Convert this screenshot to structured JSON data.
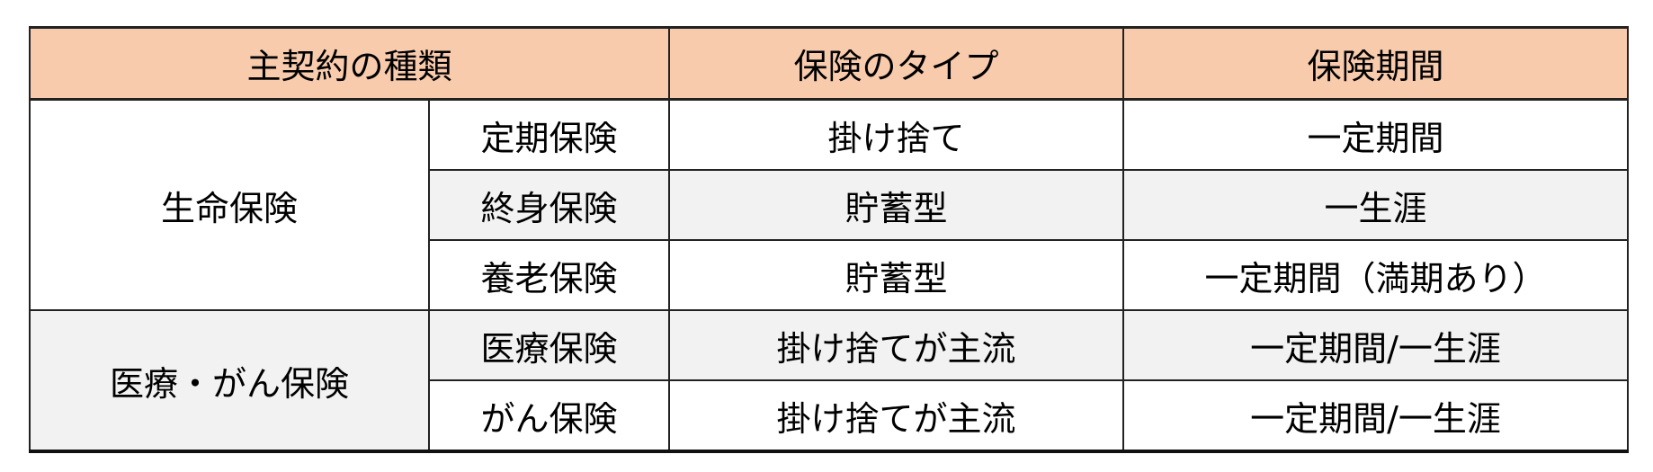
{
  "header": {
    "kind": "主契約の種類",
    "type": "保険のタイプ",
    "period": "保険期間"
  },
  "groups": [
    {
      "name": "生命保険",
      "rows": [
        {
          "name": "定期保険",
          "type": "掛け捨て",
          "period": "一定期間"
        },
        {
          "name": "終身保険",
          "type": "貯蓄型",
          "period": "一生涯"
        },
        {
          "name": "養老保険",
          "type": "貯蓄型",
          "period": "一定期間（満期あり）"
        }
      ]
    },
    {
      "name": "医療・がん保険",
      "rows": [
        {
          "name": "医療保険",
          "type": "掛け捨てが主流",
          "period": "一定期間/一生涯"
        },
        {
          "name": "がん保険",
          "type": "掛け捨てが主流",
          "period": "一定期間/一生涯"
        }
      ]
    }
  ],
  "colors": {
    "header_bg": "#F8CBAD",
    "stripe_bg": "#F2F2F2"
  }
}
